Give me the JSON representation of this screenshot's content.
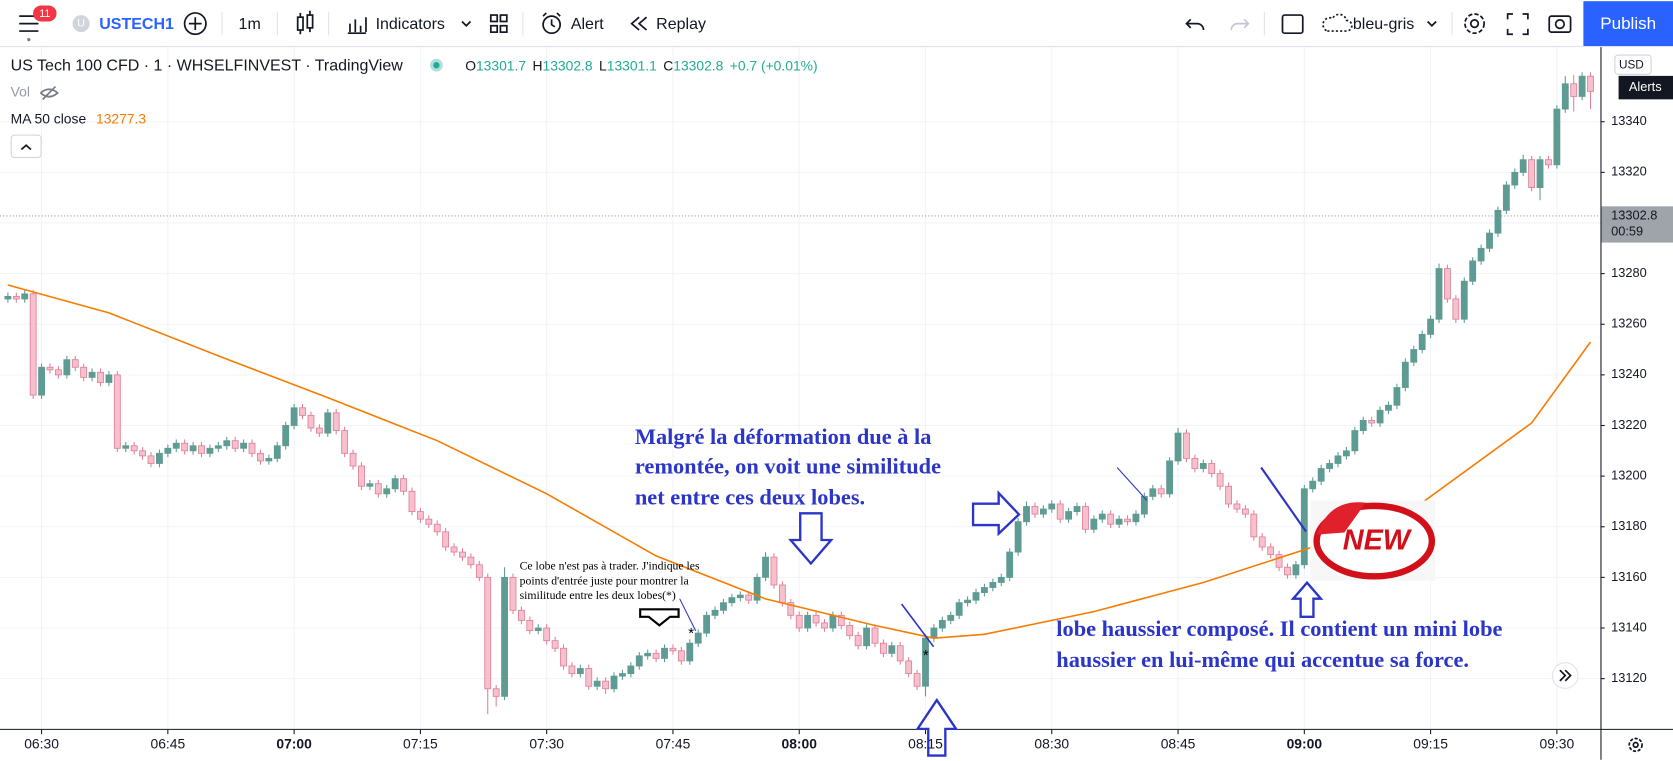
{
  "toolbar": {
    "notifications": "11",
    "symbol_icon": "U",
    "symbol": "USTECH1",
    "interval": "1m",
    "indicators": "Indicators",
    "alert": "Alert",
    "replay": "Replay",
    "layout": "bleu-gris",
    "publish": "Publish"
  },
  "legend": {
    "title": "US Tech 100 CFD · 1 · WHSELFINVEST · TradingView",
    "ohlc": [
      {
        "key": "O",
        "value": 13301.7
      },
      {
        "key": "H",
        "value": 13302.8
      },
      {
        "key": "L",
        "value": 13301.1
      },
      {
        "key": "C",
        "value": 13302.8
      }
    ],
    "change": "+0.7 (+0.01%)",
    "vol": "Vol",
    "ma_value": 13277.3
  },
  "price_axis": {
    "currency": "USD",
    "alerts": "Alerts",
    "last_price": 13302.8,
    "countdown": "00:59"
  },
  "annotations": {
    "main": [
      "Malgré la déformation due à la",
      "remontée, on voit une similitude",
      "net entre ces deux lobes."
    ],
    "note": [
      "Ce lobe n'est pas à trader. J'indique les",
      "points d'entrée juste pour montrer la",
      "similitude entre les deux lobes(*)"
    ],
    "composite": [
      "lobe haussier composé. Il contient un mini lobe",
      "haussier en lui-même qui accentue sa force."
    ],
    "asterisks": [
      "*",
      "*"
    ],
    "badge": "NEW"
  },
  "chart_data": {
    "type": "candlestick",
    "up_color": "#5e9c93",
    "down_color": "#f6c1cd",
    "down_edge": "#e0809a",
    "grid": true,
    "ylim": [
      13101,
      13369.5
    ],
    "yticks": [
      13120,
      13140,
      13160,
      13180,
      13200,
      13220,
      13240,
      13260,
      13280,
      13300,
      13320,
      13340
    ],
    "categories": [
      null,
      null,
      null,
      null,
      "06:30",
      null,
      null,
      null,
      null,
      null,
      null,
      null,
      null,
      null,
      null,
      null,
      null,
      null,
      null,
      "06:45",
      null,
      null,
      null,
      null,
      null,
      null,
      null,
      null,
      null,
      null,
      null,
      null,
      null,
      null,
      "07:00",
      null,
      null,
      null,
      null,
      null,
      null,
      null,
      null,
      null,
      null,
      null,
      null,
      null,
      null,
      "07:15",
      null,
      null,
      null,
      null,
      null,
      null,
      null,
      null,
      null,
      null,
      null,
      null,
      null,
      null,
      "07:30",
      null,
      null,
      null,
      null,
      null,
      null,
      null,
      null,
      null,
      null,
      null,
      null,
      null,
      null,
      "07:45",
      null,
      null,
      null,
      null,
      null,
      null,
      null,
      null,
      null,
      null,
      null,
      null,
      null,
      null,
      "08:00",
      null,
      null,
      null,
      null,
      null,
      null,
      null,
      null,
      null,
      null,
      null,
      null,
      null,
      null,
      "08:15",
      null,
      null,
      null,
      null,
      null,
      null,
      null,
      null,
      null,
      null,
      null,
      null,
      null,
      null,
      "08:30",
      null,
      null,
      null,
      null,
      null,
      null,
      null,
      null,
      null,
      null,
      null,
      null,
      null,
      null,
      "08:45",
      null,
      null,
      null,
      null,
      null,
      null,
      null,
      null,
      null,
      null,
      null,
      null,
      null,
      null,
      "09:00",
      null,
      null,
      null,
      null,
      null,
      null,
      null,
      null,
      null,
      null,
      null,
      null,
      null,
      null,
      "09:15",
      null,
      null,
      null,
      null,
      null,
      null,
      null,
      null,
      null,
      null,
      null,
      null,
      null,
      null,
      "09:30",
      null,
      null,
      null,
      null
    ],
    "ohlc": [
      [
        13270,
        13272.5,
        13268.5,
        13271
      ],
      [
        13271,
        13272.5,
        13268.5,
        13270
      ],
      [
        13270,
        13273.5,
        13268.5,
        13272
      ],
      [
        13272,
        13273.5,
        13230.5,
        13232
      ],
      [
        13232,
        13244.5,
        13230.5,
        13243
      ],
      [
        13243,
        13244.5,
        13240.5,
        13242
      ],
      [
        13242,
        13243.5,
        13238.5,
        13240
      ],
      [
        13240,
        13247.5,
        13238.5,
        13246
      ],
      [
        13246,
        13247.5,
        13241.5,
        13243
      ],
      [
        13243,
        13244.5,
        13237.5,
        13239
      ],
      [
        13239,
        13242.5,
        13237.5,
        13241
      ],
      [
        13241,
        13242.5,
        13235.5,
        13237
      ],
      [
        13237,
        13241.5,
        13235.5,
        13240
      ],
      [
        13240,
        13241.5,
        13209.5,
        13211
      ],
      [
        13211,
        13213.5,
        13209.5,
        13212
      ],
      [
        13212,
        13213.5,
        13208.5,
        13210
      ],
      [
        13210,
        13211.5,
        13206.5,
        13208
      ],
      [
        13208,
        13209.5,
        13203.5,
        13205
      ],
      [
        13205,
        13210.5,
        13203.5,
        13209
      ],
      [
        13209,
        13212.5,
        13207.5,
        13211
      ],
      [
        13211,
        13214.5,
        13209.5,
        13213
      ],
      [
        13213,
        13214.5,
        13208.5,
        13210
      ],
      [
        13210,
        13213.5,
        13208.5,
        13212
      ],
      [
        13212,
        13213.5,
        13207.5,
        13209
      ],
      [
        13209,
        13212.5,
        13207.5,
        13211
      ],
      [
        13211,
        13213.5,
        13209.5,
        13212
      ],
      [
        13212,
        13215.5,
        13210.5,
        13214
      ],
      [
        13214,
        13215.5,
        13209.5,
        13211
      ],
      [
        13211,
        13214.5,
        13209.5,
        13213
      ],
      [
        13213,
        13214.5,
        13207.5,
        13209
      ],
      [
        13209,
        13210.5,
        13204.5,
        13206
      ],
      [
        13206,
        13208.5,
        13204.5,
        13207
      ],
      [
        13207,
        13213.5,
        13205.5,
        13212
      ],
      [
        13212,
        13221.5,
        13210.5,
        13220
      ],
      [
        13220,
        13228.5,
        13218.5,
        13227
      ],
      [
        13227,
        13228.5,
        13222.5,
        13224
      ],
      [
        13224,
        13225.5,
        13217.5,
        13219
      ],
      [
        13219,
        13220.5,
        13215.5,
        13217
      ],
      [
        13217,
        13226.5,
        13215.5,
        13225
      ],
      [
        13225,
        13226.5,
        13216.5,
        13218
      ],
      [
        13218,
        13219.5,
        13207.5,
        13209
      ],
      [
        13209,
        13210.5,
        13202.5,
        13204
      ],
      [
        13204,
        13205.5,
        13194.5,
        13196
      ],
      [
        13196,
        13198.5,
        13194.5,
        13197
      ],
      [
        13197,
        13198.5,
        13191.5,
        13193
      ],
      [
        13193,
        13196.5,
        13191.5,
        13195
      ],
      [
        13195,
        13200.5,
        13193.5,
        13199
      ],
      [
        13199,
        13200.5,
        13192.5,
        13194
      ],
      [
        13194,
        13195.5,
        13184.5,
        13186
      ],
      [
        13186,
        13187.5,
        13181.5,
        13183
      ],
      [
        13183,
        13184.5,
        13179.5,
        13181
      ],
      [
        13181,
        13182.5,
        13176.5,
        13178
      ],
      [
        13178,
        13179.5,
        13170.5,
        13172
      ],
      [
        13172,
        13173.5,
        13168.5,
        13170
      ],
      [
        13170,
        13171.5,
        13166.5,
        13168
      ],
      [
        13168,
        13169.5,
        13163.5,
        13165
      ],
      [
        13165,
        13166.5,
        13158.5,
        13160
      ],
      [
        13160,
        13161.5,
        13106,
        13116
      ],
      [
        13116,
        13117.5,
        13109,
        13113
      ],
      [
        13113,
        13164,
        13111.5,
        13160
      ],
      [
        13160,
        13161.5,
        13145.5,
        13147
      ],
      [
        13147,
        13148.5,
        13141.5,
        13143
      ],
      [
        13143,
        13144.5,
        13137.5,
        13139
      ],
      [
        13139,
        13141.5,
        13137.5,
        13140
      ],
      [
        13140,
        13141.5,
        13133.5,
        13135
      ],
      [
        13135,
        13136.5,
        13130.5,
        13132
      ],
      [
        13132,
        13133.5,
        13123.5,
        13125
      ],
      [
        13125,
        13126.5,
        13120.5,
        13122
      ],
      [
        13122,
        13125.5,
        13120.5,
        13124
      ],
      [
        13124,
        13125.5,
        13115.5,
        13117
      ],
      [
        13117,
        13120.5,
        13115.5,
        13119
      ],
      [
        13119,
        13120.5,
        13114,
        13116
      ],
      [
        13116,
        13122.5,
        13114.5,
        13121
      ],
      [
        13121,
        13123.5,
        13119.5,
        13122
      ],
      [
        13122,
        13126.5,
        13120.5,
        13125
      ],
      [
        13125,
        13130.5,
        13123.5,
        13129
      ],
      [
        13129,
        13131.5,
        13127.5,
        13130
      ],
      [
        13130,
        13131.5,
        13126.5,
        13128
      ],
      [
        13128,
        13133.5,
        13126.5,
        13132
      ],
      [
        13132,
        13133.5,
        13129.5,
        13131
      ],
      [
        13131,
        13132.5,
        13125.5,
        13127
      ],
      [
        13127,
        13135.5,
        13125.5,
        13134
      ],
      [
        13134,
        13139.5,
        13132.5,
        13138
      ],
      [
        13138,
        13146.5,
        13136.5,
        13145
      ],
      [
        13145,
        13148.5,
        13143.5,
        13147
      ],
      [
        13147,
        13151.5,
        13145.5,
        13150
      ],
      [
        13150,
        13153.5,
        13148.5,
        13152
      ],
      [
        13152,
        13154.5,
        13150.5,
        13153
      ],
      [
        13153,
        13154.5,
        13149.5,
        13151
      ],
      [
        13151,
        13161.5,
        13149.5,
        13160
      ],
      [
        13160,
        13170,
        13158.5,
        13168
      ],
      [
        13168,
        13169.5,
        13155.5,
        13157
      ],
      [
        13157,
        13158.5,
        13148.5,
        13150
      ],
      [
        13150,
        13151.5,
        13143.5,
        13145
      ],
      [
        13145,
        13146.5,
        13138.5,
        13140
      ],
      [
        13140,
        13146.5,
        13138.5,
        13145
      ],
      [
        13145,
        13146.5,
        13140.5,
        13142
      ],
      [
        13142,
        13143.5,
        13138.5,
        13140
      ],
      [
        13140,
        13146.5,
        13138.5,
        13145
      ],
      [
        13145,
        13146.5,
        13139.5,
        13141
      ],
      [
        13141,
        13142.5,
        13135.5,
        13137
      ],
      [
        13137,
        13138.5,
        13131.5,
        13133
      ],
      [
        13133,
        13141.5,
        13131.5,
        13140
      ],
      [
        13140,
        13141.5,
        13132.5,
        13134
      ],
      [
        13134,
        13135.5,
        13128.5,
        13130
      ],
      [
        13130,
        13134.5,
        13128.5,
        13133
      ],
      [
        13133,
        13134.5,
        13125.5,
        13127
      ],
      [
        13127,
        13128.5,
        13120.5,
        13122
      ],
      [
        13122,
        13123.5,
        13115.5,
        13117
      ],
      [
        13117,
        13137.5,
        13113,
        13136
      ],
      [
        13136,
        13141.5,
        13134.5,
        13140
      ],
      [
        13140,
        13144.5,
        13138.5,
        13143
      ],
      [
        13143,
        13146.5,
        13141.5,
        13145
      ],
      [
        13145,
        13151.5,
        13143.5,
        13150
      ],
      [
        13150,
        13152.5,
        13148.5,
        13151
      ],
      [
        13151,
        13155.5,
        13149.5,
        13154
      ],
      [
        13154,
        13157.5,
        13152.5,
        13156
      ],
      [
        13156,
        13159.5,
        13154.5,
        13158
      ],
      [
        13158,
        13161.5,
        13156.5,
        13160
      ],
      [
        13160,
        13171.5,
        13158.5,
        13170
      ],
      [
        13170,
        13183.5,
        13168.5,
        13182
      ],
      [
        13182,
        13190,
        13180.5,
        13188
      ],
      [
        13188,
        13189.5,
        13183.5,
        13185
      ],
      [
        13185,
        13188.5,
        13183.5,
        13187
      ],
      [
        13187,
        13190.5,
        13185.5,
        13189
      ],
      [
        13189,
        13190.5,
        13181.5,
        13183
      ],
      [
        13183,
        13187.5,
        13181.5,
        13186
      ],
      [
        13186,
        13189.5,
        13184.5,
        13188
      ],
      [
        13188,
        13189.5,
        13177.5,
        13179
      ],
      [
        13179,
        13184.5,
        13177.5,
        13183
      ],
      [
        13183,
        13186.5,
        13181.5,
        13185
      ],
      [
        13185,
        13186.5,
        13179.5,
        13181
      ],
      [
        13181,
        13184.5,
        13179.5,
        13183
      ],
      [
        13183,
        13184.5,
        13180.5,
        13182
      ],
      [
        13182,
        13186.5,
        13180.5,
        13185
      ],
      [
        13185,
        13193.5,
        13183.5,
        13192
      ],
      [
        13192,
        13196.5,
        13190.5,
        13195
      ],
      [
        13195,
        13196.5,
        13191.5,
        13193
      ],
      [
        13193,
        13207.5,
        13191.5,
        13206
      ],
      [
        13206,
        13219,
        13204.5,
        13217
      ],
      [
        13217,
        13218.5,
        13205.5,
        13207
      ],
      [
        13207,
        13208.5,
        13201.5,
        13203
      ],
      [
        13203,
        13206.5,
        13201.5,
        13205
      ],
      [
        13205,
        13206.5,
        13199.5,
        13201
      ],
      [
        13201,
        13202.5,
        13194.5,
        13196
      ],
      [
        13196,
        13197.5,
        13187.5,
        13189
      ],
      [
        13189,
        13190.5,
        13185.5,
        13187
      ],
      [
        13187,
        13188.5,
        13183.5,
        13185
      ],
      [
        13185,
        13186.5,
        13174.5,
        13176
      ],
      [
        13176,
        13177.5,
        13170.5,
        13172
      ],
      [
        13172,
        13173.5,
        13167.5,
        13169
      ],
      [
        13169,
        13170.5,
        13162.5,
        13164
      ],
      [
        13164,
        13165.5,
        13159.5,
        13161
      ],
      [
        13161,
        13166.5,
        13159.5,
        13165
      ],
      [
        13165,
        13196.5,
        13163.5,
        13195
      ],
      [
        13195,
        13199.5,
        13193.5,
        13198
      ],
      [
        13198,
        13204.5,
        13196.5,
        13203
      ],
      [
        13203,
        13206.5,
        13201.5,
        13205
      ],
      [
        13205,
        13209.5,
        13203.5,
        13208
      ],
      [
        13208,
        13211.5,
        13206.5,
        13210
      ],
      [
        13210,
        13219.5,
        13208.5,
        13218
      ],
      [
        13218,
        13223.5,
        13216.5,
        13222
      ],
      [
        13222,
        13223.5,
        13219.5,
        13221
      ],
      [
        13221,
        13227.5,
        13219.5,
        13226
      ],
      [
        13226,
        13229.5,
        13224.5,
        13228
      ],
      [
        13228,
        13236.5,
        13226.5,
        13235
      ],
      [
        13235,
        13246.5,
        13233.5,
        13245
      ],
      [
        13245,
        13251.5,
        13243.5,
        13250
      ],
      [
        13250,
        13257.5,
        13248.5,
        13256
      ],
      [
        13256,
        13263.5,
        13254.5,
        13262
      ],
      [
        13262,
        13284,
        13260.5,
        13282
      ],
      [
        13282,
        13283.5,
        13268.5,
        13270
      ],
      [
        13270,
        13271.5,
        13260.5,
        13262
      ],
      [
        13262,
        13278.5,
        13260.5,
        13277
      ],
      [
        13277,
        13286.5,
        13275.5,
        13285
      ],
      [
        13285,
        13291.5,
        13283.5,
        13290
      ],
      [
        13290,
        13297.5,
        13288.5,
        13296
      ],
      [
        13296,
        13306.5,
        13294.5,
        13305
      ],
      [
        13305,
        13316.5,
        13303.5,
        13315
      ],
      [
        13315,
        13321.5,
        13313.5,
        13320
      ],
      [
        13320,
        13327,
        13318.5,
        13325
      ],
      [
        13325,
        13326.5,
        13312.5,
        13314
      ],
      [
        13314,
        13326.5,
        13309,
        13325
      ],
      [
        13325,
        13326.5,
        13321.5,
        13323
      ],
      [
        13323,
        13346.5,
        13321.5,
        13345
      ],
      [
        13345,
        13358,
        13343.5,
        13355
      ],
      [
        13355,
        13358.5,
        13344,
        13350
      ],
      [
        13350,
        13359.5,
        13348.5,
        13358
      ],
      [
        13358,
        13359.5,
        13345,
        13352
      ]
    ],
    "series": [
      {
        "name": "MA 50 close",
        "color": "#f57c00",
        "x": [
          0,
          12,
          25,
          38,
          51,
          64,
          77,
          90,
          103,
          110,
          116,
          129,
          142,
          155,
          168,
          181,
          188
        ],
        "values": [
          13275.5,
          13264.5,
          13247.5,
          13231,
          13214,
          13193,
          13168.5,
          13151.5,
          13141,
          13136,
          13137.5,
          13146.5,
          13158,
          13172,
          13189.5,
          13221,
          13253
        ]
      }
    ]
  }
}
